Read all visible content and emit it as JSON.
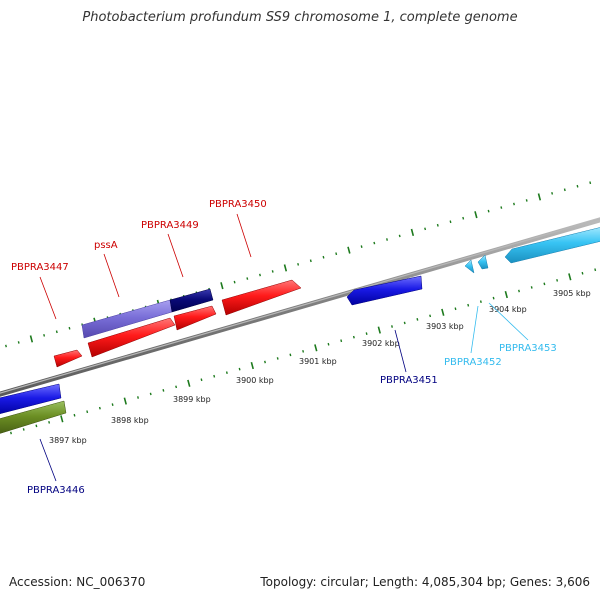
{
  "title": "Photobacterium profundum SS9 chromosome 1, complete genome",
  "accession": "Accession: NC_006370",
  "topology": "Topology: circular; Length: 4,085,304 bp; Genes: 3,606",
  "colors": {
    "tick": "#1d7a1d",
    "backbone": "#8a8a8a",
    "label_red": "#cc0000",
    "label_navy": "#000080",
    "label_cyan": "#33bbee"
  },
  "kbp_labels": [
    "3897 kbp",
    "3898 kbp",
    "3899 kbp",
    "3900 kbp",
    "3901 kbp",
    "3902 kbp",
    "3903 kbp",
    "3904 kbp",
    "3905 kbp"
  ],
  "genes": [
    {
      "label": "PBPRA3446",
      "color": "navy"
    },
    {
      "label": "PBPRA3447",
      "color": "red"
    },
    {
      "label": "pssA",
      "color": "red"
    },
    {
      "label": "PBPRA3449",
      "color": "red"
    },
    {
      "label": "PBPRA3450",
      "color": "red"
    },
    {
      "label": "PBPRA3451",
      "color": "navy"
    },
    {
      "label": "PBPRA3452",
      "color": "cyan"
    },
    {
      "label": "PBPRA3453",
      "color": "cyan"
    }
  ]
}
